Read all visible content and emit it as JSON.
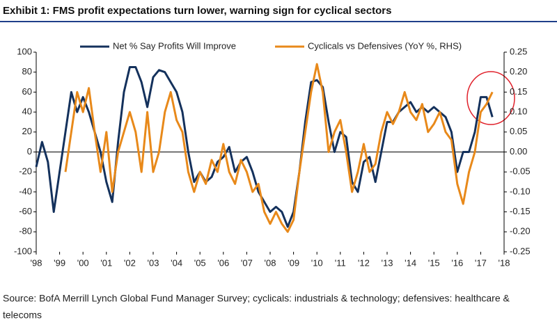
{
  "chart_data": {
    "type": "line",
    "title": "Exhibit 1: FMS profit expectations turn lower, warning sign for cyclical sectors",
    "source": "Source: BofA Merrill Lynch Global Fund Manager Survey; cyclicals: industrials & technology; defensives: healthcare &",
    "source_line2": "telecoms",
    "x": [
      1998,
      1998.25,
      1998.5,
      1998.75,
      1999,
      1999.25,
      1999.5,
      1999.75,
      2000,
      2000.25,
      2000.5,
      2000.75,
      2001,
      2001.25,
      2001.5,
      2001.75,
      2002,
      2002.25,
      2002.5,
      2002.75,
      2003,
      2003.25,
      2003.5,
      2003.75,
      2004,
      2004.25,
      2004.5,
      2004.75,
      2005,
      2005.25,
      2005.5,
      2005.75,
      2006,
      2006.25,
      2006.5,
      2006.75,
      2007,
      2007.25,
      2007.5,
      2007.75,
      2008,
      2008.25,
      2008.5,
      2008.75,
      2009,
      2009.25,
      2009.5,
      2009.75,
      2010,
      2010.25,
      2010.5,
      2010.75,
      2011,
      2011.25,
      2011.5,
      2011.75,
      2012,
      2012.25,
      2012.5,
      2012.75,
      2013,
      2013.25,
      2013.5,
      2013.75,
      2014,
      2014.25,
      2014.5,
      2014.75,
      2015,
      2015.25,
      2015.5,
      2015.75,
      2016,
      2016.25,
      2016.5,
      2016.75,
      2017,
      2017.25,
      2017.5
    ],
    "series": [
      {
        "name": "Net % Say Profits Will Improve",
        "color": "#14315c",
        "axis": "y",
        "values": [
          -15,
          10,
          -10,
          -60,
          -20,
          20,
          60,
          40,
          55,
          40,
          20,
          0,
          -30,
          -50,
          10,
          60,
          85,
          85,
          70,
          45,
          75,
          82,
          80,
          70,
          60,
          40,
          0,
          -30,
          -20,
          -30,
          -25,
          -10,
          -5,
          5,
          -20,
          -10,
          -5,
          -20,
          -40,
          -50,
          -60,
          -55,
          -60,
          -75,
          -60,
          -20,
          30,
          70,
          72,
          65,
          30,
          0,
          20,
          15,
          -30,
          -40,
          -10,
          -5,
          -30,
          0,
          30,
          30,
          40,
          45,
          50,
          40,
          45,
          40,
          45,
          40,
          35,
          20,
          -20,
          0,
          0,
          20,
          55,
          55,
          35
        ]
      },
      {
        "name": "Cyclicals vs Defensives (YoY %, RHS)",
        "color": "#e8891a",
        "axis": "y2",
        "values": [
          null,
          null,
          null,
          null,
          null,
          -0.05,
          0.05,
          0.15,
          0.1,
          0.16,
          0.05,
          -0.05,
          0.05,
          -0.1,
          0.0,
          0.05,
          0.1,
          0.05,
          -0.05,
          0.1,
          -0.05,
          0.0,
          0.1,
          0.15,
          0.08,
          0.05,
          -0.05,
          -0.1,
          -0.05,
          -0.08,
          -0.02,
          -0.05,
          0.02,
          -0.05,
          -0.08,
          -0.02,
          -0.05,
          -0.1,
          -0.08,
          -0.15,
          -0.18,
          -0.15,
          -0.18,
          -0.2,
          -0.17,
          -0.05,
          0.05,
          0.15,
          0.22,
          0.15,
          0.0,
          0.05,
          0.08,
          0.0,
          -0.1,
          -0.05,
          0.02,
          -0.05,
          -0.03,
          0.05,
          0.1,
          0.07,
          0.1,
          0.15,
          0.1,
          0.08,
          0.12,
          0.05,
          0.07,
          0.1,
          0.05,
          0.03,
          -0.08,
          -0.13,
          -0.05,
          0.0,
          0.1,
          0.12,
          0.15
        ]
      }
    ],
    "xlim": [
      1998,
      2018
    ],
    "xticks": [
      {
        "value": 1998,
        "label": "'98"
      },
      {
        "value": 1999,
        "label": "'99"
      },
      {
        "value": 2000,
        "label": "'00"
      },
      {
        "value": 2001,
        "label": "'01"
      },
      {
        "value": 2002,
        "label": "'02"
      },
      {
        "value": 2003,
        "label": "'03"
      },
      {
        "value": 2004,
        "label": "'04"
      },
      {
        "value": 2005,
        "label": "'05"
      },
      {
        "value": 2006,
        "label": "'06"
      },
      {
        "value": 2007,
        "label": "'07"
      },
      {
        "value": 2008,
        "label": "'08"
      },
      {
        "value": 2009,
        "label": "'09"
      },
      {
        "value": 2010,
        "label": "'10"
      },
      {
        "value": 2011,
        "label": "'11"
      },
      {
        "value": 2012,
        "label": "'12"
      },
      {
        "value": 2013,
        "label": "'13"
      },
      {
        "value": 2014,
        "label": "'14"
      },
      {
        "value": 2015,
        "label": "'15"
      },
      {
        "value": 2016,
        "label": "'16"
      },
      {
        "value": 2017,
        "label": "'17"
      },
      {
        "value": 2018,
        "label": "'18"
      }
    ],
    "ylim": [
      -100,
      100
    ],
    "yticks": [
      -100,
      -80,
      -60,
      -40,
      -20,
      0,
      20,
      40,
      60,
      80,
      100
    ],
    "y2lim": [
      -0.25,
      0.25
    ],
    "y2ticks": [
      {
        "value": -0.25,
        "label": "-0.25"
      },
      {
        "value": -0.2,
        "label": "-0.20"
      },
      {
        "value": -0.15,
        "label": "-0.15"
      },
      {
        "value": -0.1,
        "label": "-0.10"
      },
      {
        "value": -0.05,
        "label": "-0.05"
      },
      {
        "value": 0,
        "label": "0.00"
      },
      {
        "value": 0.05,
        "label": "0.05"
      },
      {
        "value": 0.1,
        "label": "0.10"
      },
      {
        "value": 0.15,
        "label": "0.15"
      },
      {
        "value": 0.2,
        "label": "0.20"
      },
      {
        "value": 0.25,
        "label": "0.25"
      }
    ],
    "grid": false
  }
}
